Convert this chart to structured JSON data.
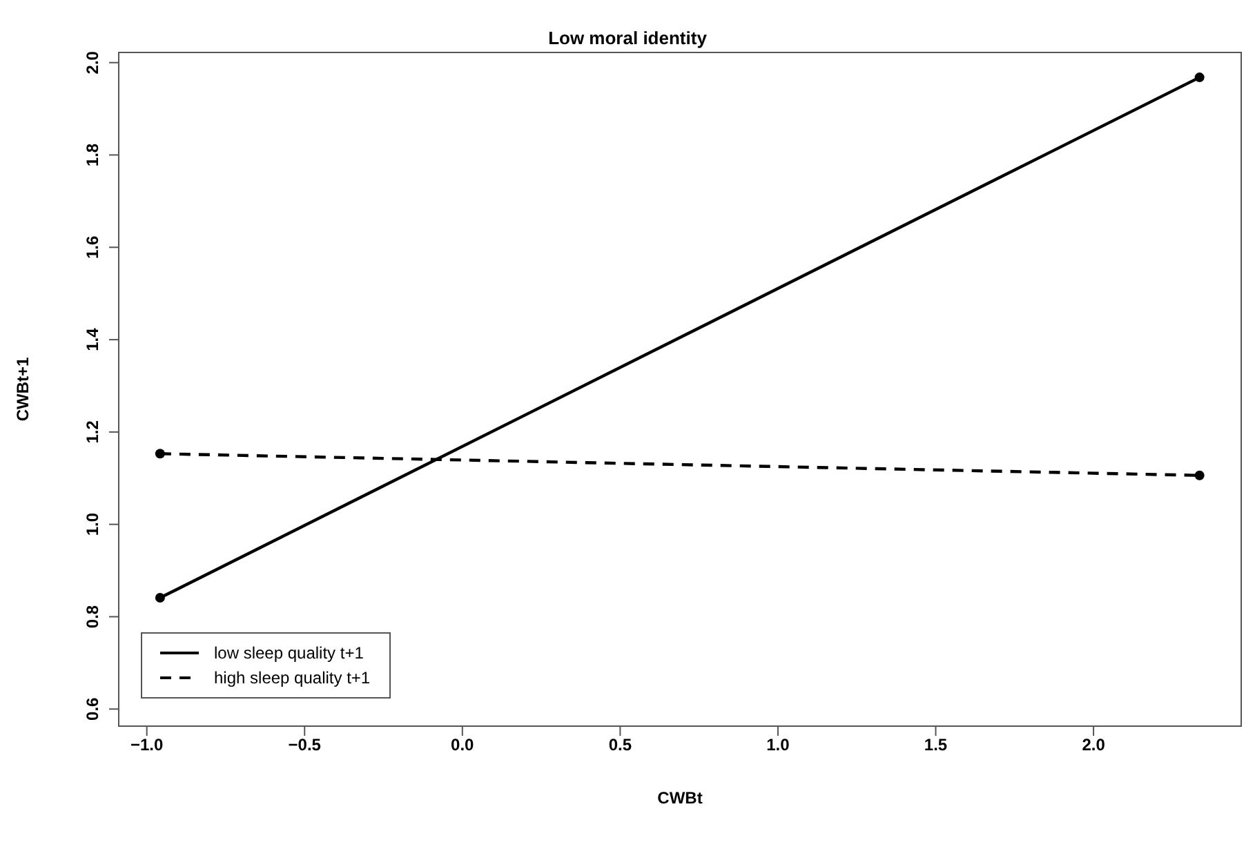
{
  "chart_data": {
    "type": "line",
    "title": "Low moral identity",
    "xlabel": "CWBt",
    "ylabel": "CWBt+1",
    "x": [
      -0.958,
      2.336
    ],
    "xlim": [
      -1.089,
      2.468
    ],
    "xticks": [
      {
        "value": -1,
        "label": "−1.0"
      },
      {
        "value": -0.5,
        "label": "−0.5"
      },
      {
        "value": 0,
        "label": "0.0"
      },
      {
        "value": 0.5,
        "label": "0.5"
      },
      {
        "value": 1,
        "label": "1.0"
      },
      {
        "value": 1.5,
        "label": "1.5"
      },
      {
        "value": 2,
        "label": "2.0"
      }
    ],
    "ylim": [
      0.563,
      2.022
    ],
    "yticks": [
      {
        "value": 0.6,
        "label": "0.6"
      },
      {
        "value": 0.8,
        "label": "0.8"
      },
      {
        "value": 1,
        "label": "1.0"
      },
      {
        "value": 1.2,
        "label": "1.2"
      },
      {
        "value": 1.4,
        "label": "1.4"
      },
      {
        "value": 1.6,
        "label": "1.6"
      },
      {
        "value": 1.8,
        "label": "1.8"
      },
      {
        "value": 2,
        "label": "2.0"
      }
    ],
    "series": [
      {
        "name": "low sleep quality t+1",
        "color": "#000000",
        "values": [
          0.841,
          1.968
        ],
        "line_style": "solid"
      },
      {
        "name": "high sleep quality t+1",
        "color": "#000000",
        "values": [
          1.153,
          1.106
        ],
        "line_style": "dashed"
      }
    ],
    "marker": "circle",
    "legend": "bottom left"
  }
}
